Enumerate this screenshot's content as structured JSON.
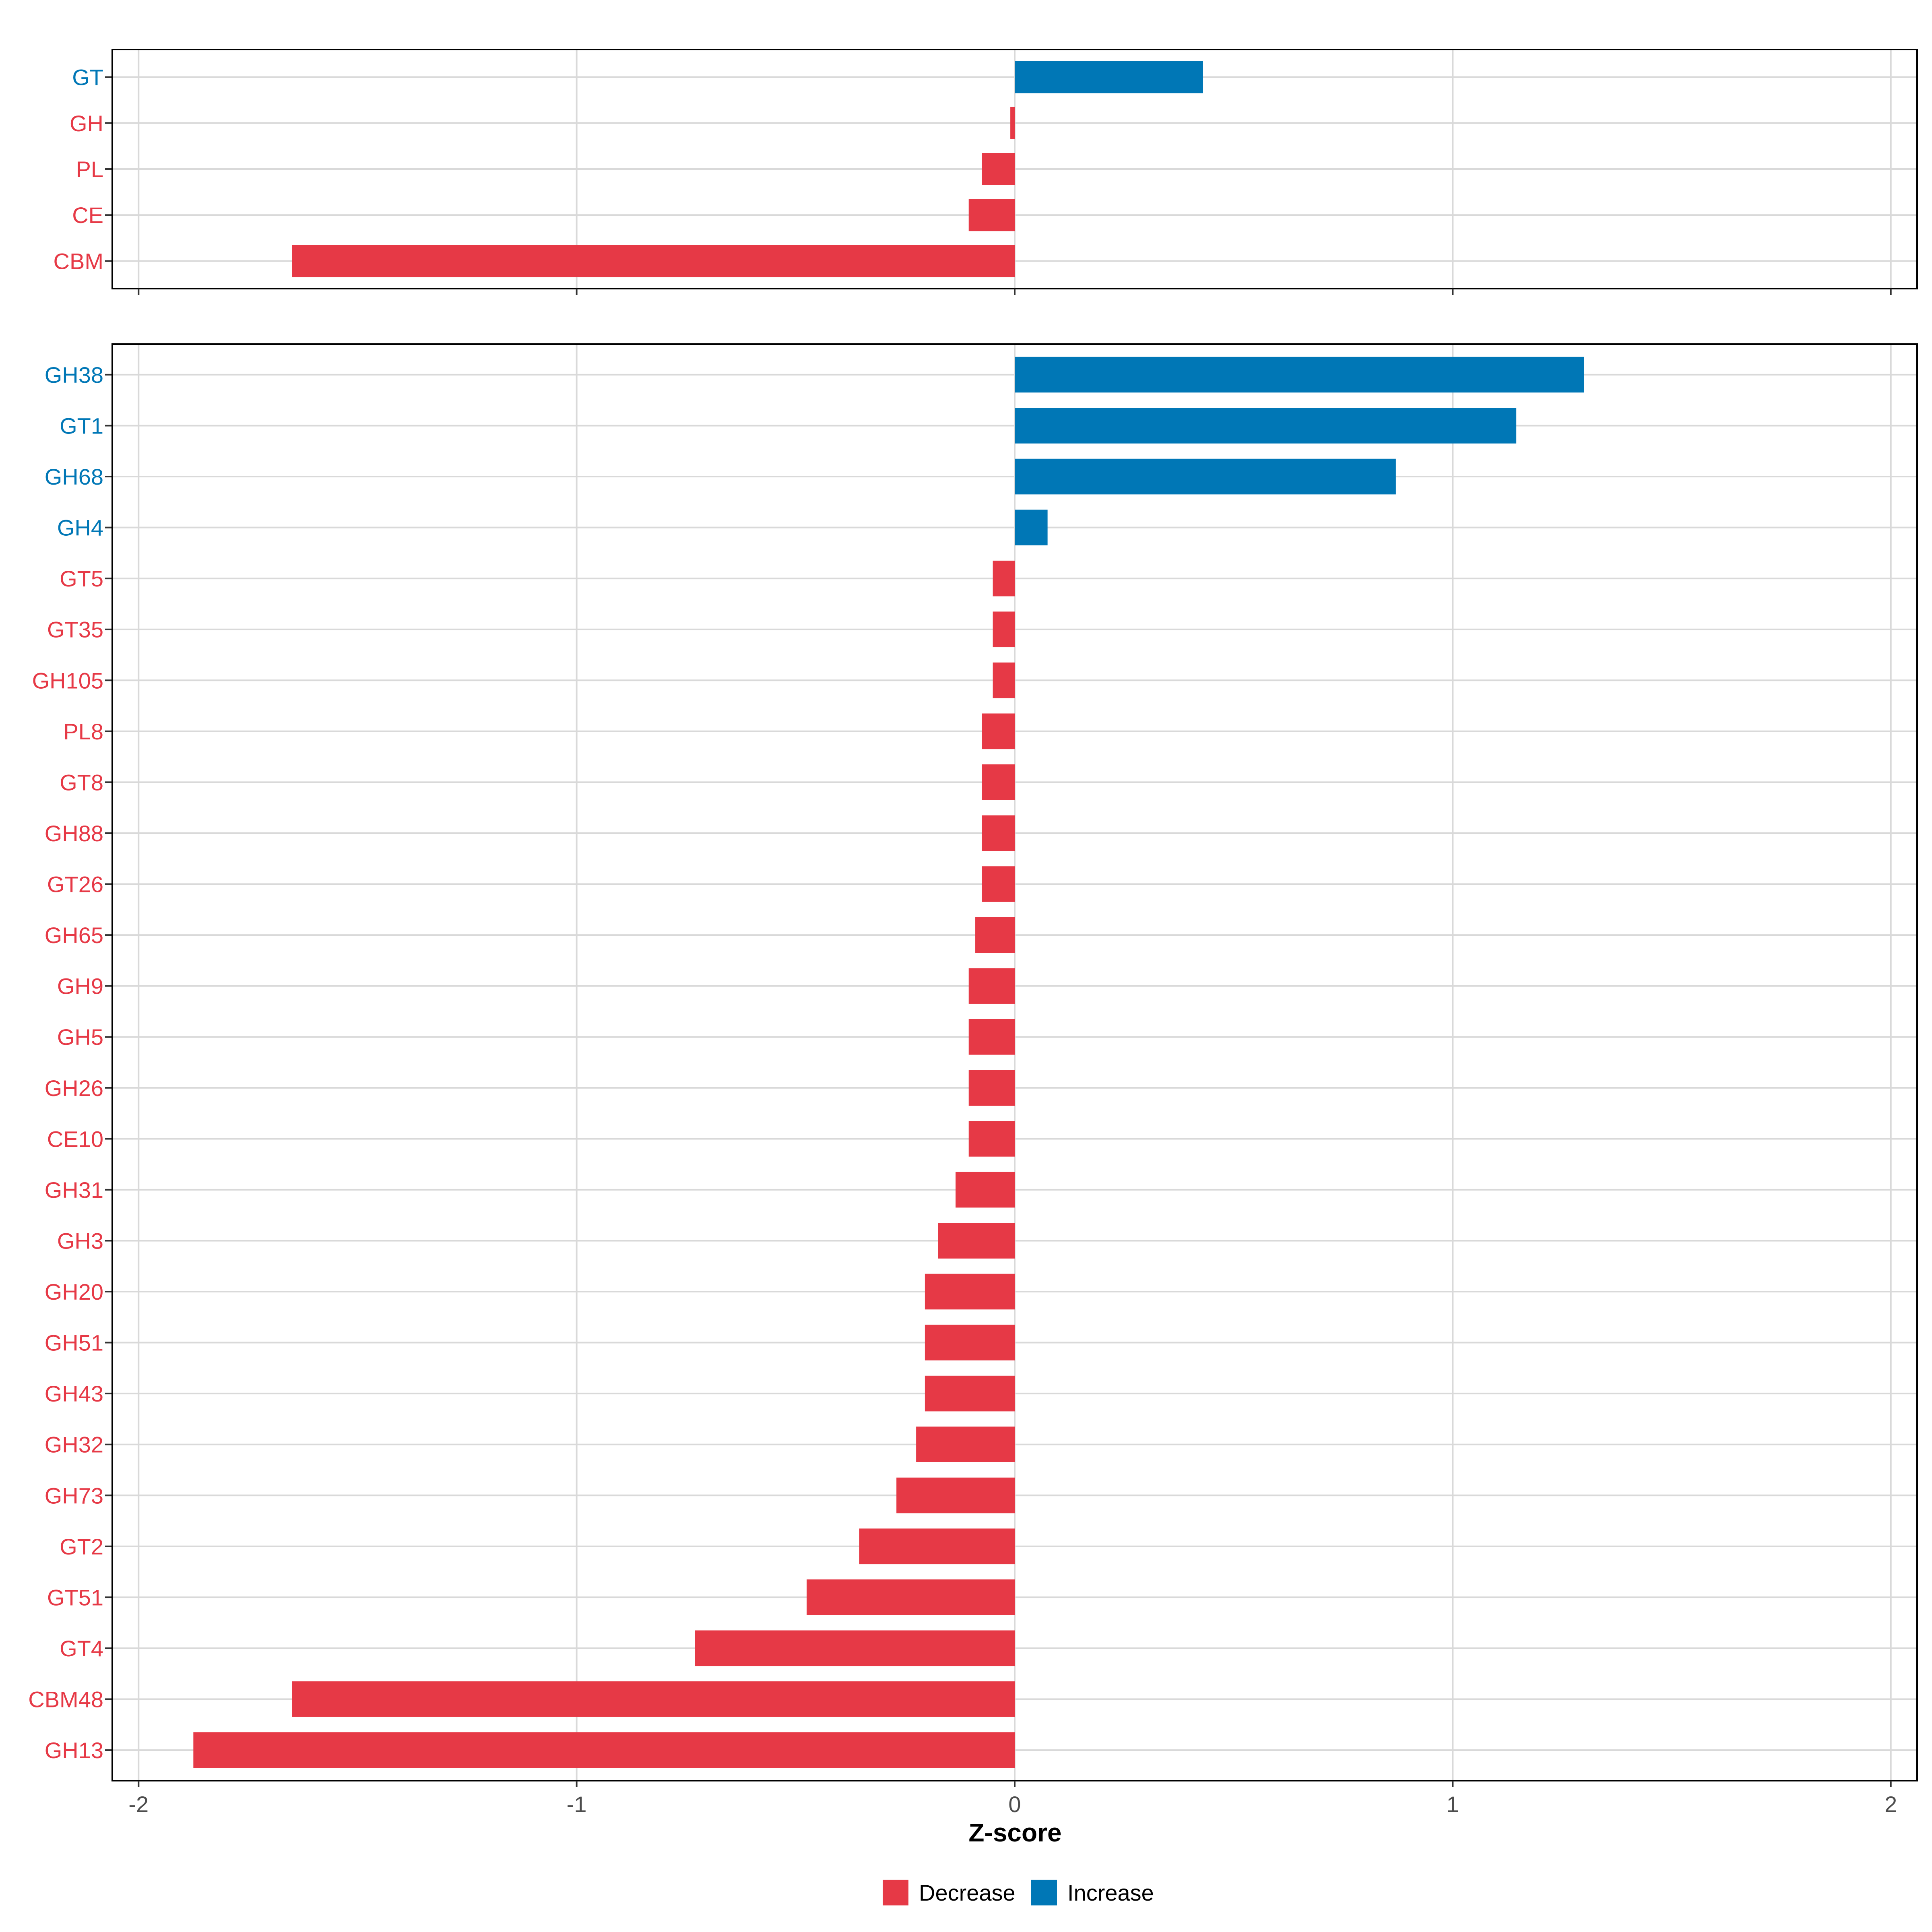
{
  "colors": {
    "decrease": "#E63946",
    "increase": "#0077B6",
    "grid": "#D9D9D9",
    "axis": "#000000",
    "tick_text": "#4D4D4D"
  },
  "legend": {
    "items": [
      {
        "label": "Decrease",
        "color": "#E63946"
      },
      {
        "label": "Increase",
        "color": "#0077B6"
      }
    ]
  },
  "chart_data": [
    {
      "type": "bar",
      "orientation": "horizontal",
      "panel": "top",
      "xlabel": "Z-score",
      "xlim": [
        -2.06,
        2.06
      ],
      "xticks": [
        -2,
        -1,
        0,
        1,
        2
      ],
      "categories": [
        "GT",
        "GH",
        "PL",
        "CE",
        "CBM"
      ],
      "values": [
        0.43,
        -0.01,
        -0.075,
        -0.105,
        -1.65
      ],
      "direction": [
        "Increase",
        "Decrease",
        "Decrease",
        "Decrease",
        "Decrease"
      ]
    },
    {
      "type": "bar",
      "orientation": "horizontal",
      "panel": "bottom",
      "xlabel": "Z-score",
      "xlim": [
        -2.06,
        2.06
      ],
      "xticks": [
        -2,
        -1,
        0,
        1,
        2
      ],
      "tick_labels": [
        "-2",
        "-1",
        "0",
        "1",
        "2"
      ],
      "categories": [
        "GH38",
        "GT1",
        "GH68",
        "GH4",
        "GT5",
        "GT35",
        "GH105",
        "PL8",
        "GT8",
        "GH88",
        "GT26",
        "GH65",
        "GH9",
        "GH5",
        "GH26",
        "CE10",
        "GH31",
        "GH3",
        "GH20",
        "GH51",
        "GH43",
        "GH32",
        "GH73",
        "GT2",
        "GT51",
        "GT4",
        "CBM48",
        "GH13"
      ],
      "values": [
        1.3,
        1.145,
        0.87,
        0.075,
        -0.05,
        -0.05,
        -0.05,
        -0.075,
        -0.075,
        -0.075,
        -0.075,
        -0.09,
        -0.105,
        -0.105,
        -0.105,
        -0.105,
        -0.135,
        -0.175,
        -0.205,
        -0.205,
        -0.205,
        -0.225,
        -0.27,
        -0.355,
        -0.475,
        -0.73,
        -1.65,
        -1.875
      ],
      "direction": [
        "Increase",
        "Increase",
        "Increase",
        "Increase",
        "Decrease",
        "Decrease",
        "Decrease",
        "Decrease",
        "Decrease",
        "Decrease",
        "Decrease",
        "Decrease",
        "Decrease",
        "Decrease",
        "Decrease",
        "Decrease",
        "Decrease",
        "Decrease",
        "Decrease",
        "Decrease",
        "Decrease",
        "Decrease",
        "Decrease",
        "Decrease",
        "Decrease",
        "Decrease",
        "Decrease",
        "Decrease"
      ]
    }
  ]
}
